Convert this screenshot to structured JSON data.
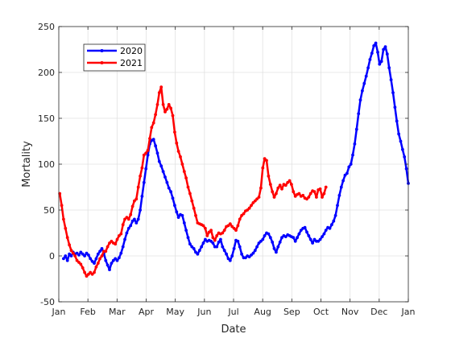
{
  "chart_data": {
    "type": "line",
    "title": "",
    "xlabel": "Date",
    "ylabel": "Mortality",
    "xlim": [
      "Jan",
      "Jan"
    ],
    "ylim": [
      -50,
      250
    ],
    "x_ticks": [
      "Jan",
      "Feb",
      "Mar",
      "Apr",
      "May",
      "Jun",
      "Jul",
      "Aug",
      "Sep",
      "Oct",
      "Nov",
      "Dec",
      "Jan"
    ],
    "y_ticks": [
      -50,
      0,
      50,
      100,
      150,
      200,
      250
    ],
    "grid": true,
    "legend_position": "top-left",
    "x_unit": "day of year",
    "series": [
      {
        "name": "2020",
        "color": "#0000ff",
        "points": [
          [
            5,
            -3
          ],
          [
            7,
            0
          ],
          [
            9,
            -5
          ],
          [
            11,
            2
          ],
          [
            13,
            0
          ],
          [
            15,
            4
          ],
          [
            17,
            2
          ],
          [
            19,
            3
          ],
          [
            21,
            1
          ],
          [
            23,
            4
          ],
          [
            25,
            2
          ],
          [
            27,
            0
          ],
          [
            29,
            3
          ],
          [
            31,
            1
          ],
          [
            33,
            -3
          ],
          [
            35,
            -6
          ],
          [
            37,
            -8
          ],
          [
            39,
            -3
          ],
          [
            41,
            2
          ],
          [
            43,
            5
          ],
          [
            45,
            8
          ],
          [
            47,
            3
          ],
          [
            49,
            -5
          ],
          [
            51,
            -10
          ],
          [
            53,
            -15
          ],
          [
            55,
            -8
          ],
          [
            57,
            -5
          ],
          [
            59,
            -3
          ],
          [
            61,
            -5
          ],
          [
            63,
            -2
          ],
          [
            65,
            3
          ],
          [
            67,
            10
          ],
          [
            69,
            18
          ],
          [
            71,
            25
          ],
          [
            73,
            30
          ],
          [
            75,
            33
          ],
          [
            77,
            38
          ],
          [
            79,
            40
          ],
          [
            81,
            36
          ],
          [
            83,
            40
          ],
          [
            85,
            50
          ],
          [
            87,
            65
          ],
          [
            89,
            80
          ],
          [
            91,
            95
          ],
          [
            93,
            110
          ],
          [
            95,
            122
          ],
          [
            97,
            126
          ],
          [
            99,
            127
          ],
          [
            101,
            120
          ],
          [
            103,
            112
          ],
          [
            105,
            103
          ],
          [
            107,
            98
          ],
          [
            109,
            92
          ],
          [
            111,
            86
          ],
          [
            113,
            80
          ],
          [
            115,
            74
          ],
          [
            117,
            70
          ],
          [
            119,
            63
          ],
          [
            121,
            55
          ],
          [
            123,
            48
          ],
          [
            125,
            42
          ],
          [
            127,
            45
          ],
          [
            129,
            44
          ],
          [
            131,
            36
          ],
          [
            133,
            28
          ],
          [
            135,
            20
          ],
          [
            137,
            13
          ],
          [
            139,
            10
          ],
          [
            141,
            8
          ],
          [
            143,
            4
          ],
          [
            145,
            2
          ],
          [
            147,
            6
          ],
          [
            149,
            10
          ],
          [
            151,
            14
          ],
          [
            153,
            18
          ],
          [
            155,
            16
          ],
          [
            157,
            17
          ],
          [
            159,
            16
          ],
          [
            161,
            14
          ],
          [
            163,
            10
          ],
          [
            165,
            10
          ],
          [
            167,
            15
          ],
          [
            169,
            18
          ],
          [
            171,
            10
          ],
          [
            173,
            6
          ],
          [
            175,
            2
          ],
          [
            177,
            -3
          ],
          [
            179,
            -5
          ],
          [
            181,
            0
          ],
          [
            183,
            8
          ],
          [
            185,
            17
          ],
          [
            187,
            16
          ],
          [
            189,
            10
          ],
          [
            191,
            2
          ],
          [
            193,
            -2
          ],
          [
            195,
            -2
          ],
          [
            197,
            0
          ],
          [
            199,
            -1
          ],
          [
            201,
            1
          ],
          [
            203,
            3
          ],
          [
            205,
            6
          ],
          [
            207,
            10
          ],
          [
            209,
            14
          ],
          [
            211,
            16
          ],
          [
            213,
            18
          ],
          [
            215,
            22
          ],
          [
            217,
            25
          ],
          [
            219,
            24
          ],
          [
            221,
            20
          ],
          [
            223,
            15
          ],
          [
            225,
            8
          ],
          [
            227,
            4
          ],
          [
            229,
            10
          ],
          [
            231,
            15
          ],
          [
            233,
            20
          ],
          [
            235,
            22
          ],
          [
            237,
            21
          ],
          [
            239,
            23
          ],
          [
            241,
            22
          ],
          [
            243,
            21
          ],
          [
            245,
            20
          ],
          [
            247,
            16
          ],
          [
            249,
            20
          ],
          [
            251,
            24
          ],
          [
            253,
            28
          ],
          [
            255,
            30
          ],
          [
            257,
            31
          ],
          [
            259,
            26
          ],
          [
            261,
            22
          ],
          [
            263,
            18
          ],
          [
            265,
            14
          ],
          [
            267,
            18
          ],
          [
            269,
            16
          ],
          [
            271,
            16
          ],
          [
            273,
            18
          ],
          [
            275,
            21
          ],
          [
            277,
            24
          ],
          [
            279,
            28
          ],
          [
            281,
            31
          ],
          [
            283,
            30
          ],
          [
            285,
            34
          ],
          [
            287,
            38
          ],
          [
            289,
            44
          ],
          [
            291,
            55
          ],
          [
            293,
            66
          ],
          [
            295,
            75
          ],
          [
            297,
            82
          ],
          [
            299,
            88
          ],
          [
            301,
            90
          ],
          [
            303,
            97
          ],
          [
            305,
            100
          ],
          [
            307,
            110
          ],
          [
            309,
            122
          ],
          [
            311,
            138
          ],
          [
            313,
            155
          ],
          [
            315,
            170
          ],
          [
            317,
            180
          ],
          [
            319,
            188
          ],
          [
            321,
            196
          ],
          [
            323,
            205
          ],
          [
            325,
            214
          ],
          [
            327,
            221
          ],
          [
            329,
            229
          ],
          [
            331,
            232
          ],
          [
            333,
            222
          ],
          [
            335,
            209
          ],
          [
            337,
            212
          ],
          [
            339,
            225
          ],
          [
            341,
            228
          ],
          [
            343,
            220
          ],
          [
            345,
            205
          ],
          [
            347,
            192
          ],
          [
            349,
            178
          ],
          [
            351,
            162
          ],
          [
            353,
            147
          ],
          [
            355,
            133
          ],
          [
            357,
            125
          ],
          [
            359,
            116
          ],
          [
            361,
            108
          ],
          [
            363,
            95
          ],
          [
            365,
            79
          ]
        ]
      },
      {
        "name": "2021",
        "color": "#ff0000",
        "points": [
          [
            1,
            68
          ],
          [
            3,
            55
          ],
          [
            5,
            40
          ],
          [
            7,
            30
          ],
          [
            9,
            20
          ],
          [
            11,
            12
          ],
          [
            13,
            6
          ],
          [
            15,
            3
          ],
          [
            17,
            0
          ],
          [
            19,
            -5
          ],
          [
            21,
            -7
          ],
          [
            23,
            -9
          ],
          [
            25,
            -13
          ],
          [
            27,
            -18
          ],
          [
            29,
            -22
          ],
          [
            31,
            -20
          ],
          [
            33,
            -18
          ],
          [
            35,
            -20
          ],
          [
            37,
            -18
          ],
          [
            39,
            -12
          ],
          [
            41,
            -8
          ],
          [
            43,
            -3
          ],
          [
            45,
            0
          ],
          [
            47,
            5
          ],
          [
            49,
            5
          ],
          [
            51,
            10
          ],
          [
            53,
            14
          ],
          [
            55,
            16
          ],
          [
            57,
            14
          ],
          [
            59,
            13
          ],
          [
            61,
            18
          ],
          [
            63,
            22
          ],
          [
            65,
            24
          ],
          [
            67,
            34
          ],
          [
            69,
            40
          ],
          [
            71,
            42
          ],
          [
            73,
            40
          ],
          [
            75,
            45
          ],
          [
            77,
            54
          ],
          [
            79,
            60
          ],
          [
            81,
            62
          ],
          [
            83,
            75
          ],
          [
            85,
            87
          ],
          [
            87,
            96
          ],
          [
            89,
            110
          ],
          [
            91,
            112
          ],
          [
            93,
            115
          ],
          [
            95,
            128
          ],
          [
            97,
            140
          ],
          [
            99,
            145
          ],
          [
            101,
            154
          ],
          [
            103,
            165
          ],
          [
            105,
            178
          ],
          [
            107,
            184
          ],
          [
            109,
            165
          ],
          [
            111,
            157
          ],
          [
            113,
            160
          ],
          [
            115,
            165
          ],
          [
            117,
            161
          ],
          [
            119,
            153
          ],
          [
            121,
            135
          ],
          [
            123,
            123
          ],
          [
            125,
            114
          ],
          [
            127,
            108
          ],
          [
            129,
            100
          ],
          [
            131,
            92
          ],
          [
            133,
            85
          ],
          [
            135,
            75
          ],
          [
            137,
            68
          ],
          [
            139,
            60
          ],
          [
            141,
            52
          ],
          [
            143,
            44
          ],
          [
            145,
            36
          ],
          [
            147,
            35
          ],
          [
            149,
            34
          ],
          [
            151,
            33
          ],
          [
            153,
            30
          ],
          [
            155,
            22
          ],
          [
            157,
            26
          ],
          [
            159,
            28
          ],
          [
            161,
            20
          ],
          [
            163,
            17
          ],
          [
            165,
            22
          ],
          [
            167,
            25
          ],
          [
            169,
            24
          ],
          [
            171,
            25
          ],
          [
            173,
            28
          ],
          [
            175,
            32
          ],
          [
            177,
            33
          ],
          [
            179,
            35
          ],
          [
            181,
            32
          ],
          [
            183,
            30
          ],
          [
            185,
            28
          ],
          [
            187,
            33
          ],
          [
            189,
            40
          ],
          [
            191,
            44
          ],
          [
            193,
            46
          ],
          [
            195,
            49
          ],
          [
            197,
            50
          ],
          [
            199,
            52
          ],
          [
            201,
            55
          ],
          [
            203,
            58
          ],
          [
            205,
            60
          ],
          [
            207,
            62
          ],
          [
            209,
            64
          ],
          [
            211,
            74
          ],
          [
            213,
            96
          ],
          [
            215,
            106
          ],
          [
            217,
            104
          ],
          [
            219,
            87
          ],
          [
            221,
            78
          ],
          [
            223,
            70
          ],
          [
            225,
            64
          ],
          [
            227,
            68
          ],
          [
            229,
            74
          ],
          [
            231,
            77
          ],
          [
            233,
            73
          ],
          [
            235,
            78
          ],
          [
            237,
            77
          ],
          [
            239,
            80
          ],
          [
            241,
            82
          ],
          [
            243,
            78
          ],
          [
            245,
            70
          ],
          [
            247,
            65
          ],
          [
            249,
            67
          ],
          [
            251,
            68
          ],
          [
            253,
            65
          ],
          [
            255,
            66
          ],
          [
            257,
            63
          ],
          [
            259,
            62
          ],
          [
            261,
            64
          ],
          [
            263,
            68
          ],
          [
            265,
            71
          ],
          [
            267,
            70
          ],
          [
            269,
            64
          ],
          [
            271,
            72
          ],
          [
            273,
            73
          ],
          [
            275,
            64
          ],
          [
            277,
            68
          ],
          [
            279,
            75
          ]
        ]
      }
    ]
  }
}
